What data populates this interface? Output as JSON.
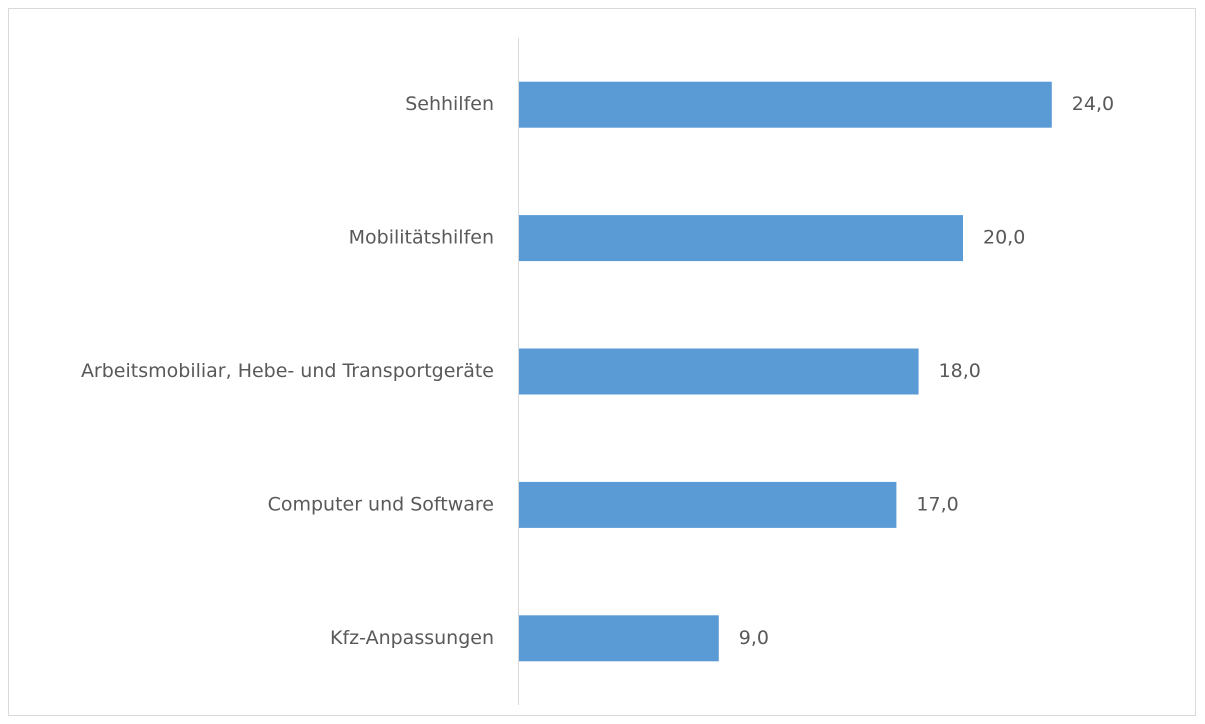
{
  "chart_data": {
    "type": "bar",
    "orientation": "horizontal",
    "categories": [
      "Sehhilfen",
      "Mobilitätshilfen",
      "Arbeitsmobiliar, Hebe- und Transportgeräte",
      "Computer und Software",
      "Kfz-Anpassungen"
    ],
    "values": [
      24,
      20,
      18,
      17,
      9
    ],
    "value_labels": [
      "24,0",
      "20,0",
      "18,0",
      "17,0",
      "9,0"
    ],
    "color": "#5b9bd5"
  }
}
